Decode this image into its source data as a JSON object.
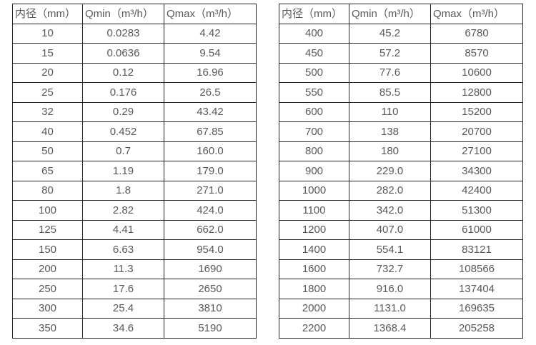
{
  "page": {
    "background_color": "#ffffff",
    "border_color": "#262626",
    "text_color": "#595959"
  },
  "tables": [
    {
      "name": "small-diameter-table",
      "headers": [
        "内径（mm）",
        "Qmin（m³/h）",
        "Qmax（m³/h）"
      ],
      "rows": [
        [
          "10",
          "0.0283",
          "4.42"
        ],
        [
          "15",
          "0.0636",
          "9.54"
        ],
        [
          "20",
          "0.12",
          "16.96"
        ],
        [
          "25",
          "0.176",
          "26.5"
        ],
        [
          "32",
          "0.29",
          "43.42"
        ],
        [
          "40",
          "0.452",
          "67.85"
        ],
        [
          "50",
          "0.7",
          "160.0"
        ],
        [
          "65",
          "1.19",
          "179.0"
        ],
        [
          "80",
          "1.8",
          "271.0"
        ],
        [
          "100",
          "2.82",
          "424.0"
        ],
        [
          "125",
          "4.41",
          "662.0"
        ],
        [
          "150",
          "6.63",
          "954.0"
        ],
        [
          "200",
          "11.3",
          "1690"
        ],
        [
          "250",
          "17.6",
          "2650"
        ],
        [
          "300",
          "25.4",
          "3810"
        ],
        [
          "350",
          "34.6",
          "5190"
        ]
      ]
    },
    {
      "name": "large-diameter-table",
      "headers": [
        "内径（mm）",
        "Qmin（m³/h）",
        "Qmax（m³/h）"
      ],
      "rows": [
        [
          "400",
          "45.2",
          "6780"
        ],
        [
          "450",
          "57.2",
          "8570"
        ],
        [
          "500",
          "77.6",
          "10600"
        ],
        [
          "550",
          "85.5",
          "12800"
        ],
        [
          "600",
          "110",
          "15200"
        ],
        [
          "700",
          "138",
          "20700"
        ],
        [
          "800",
          "180",
          "27100"
        ],
        [
          "900",
          "229.0",
          "34300"
        ],
        [
          "1000",
          "282.0",
          "42400"
        ],
        [
          "1100",
          "342.0",
          "51300"
        ],
        [
          "1200",
          "407.0",
          "61000"
        ],
        [
          "1400",
          "554.1",
          "83121"
        ],
        [
          "1600",
          "732.7",
          "108566"
        ],
        [
          "1800",
          "916.0",
          "137404"
        ],
        [
          "2000",
          "1131.0",
          "169635"
        ],
        [
          "2200",
          "1368.4",
          "205258"
        ]
      ]
    }
  ],
  "chart_data": {
    "type": "table",
    "title": "",
    "columns": [
      "内径（mm）",
      "Qmin（m³/h）",
      "Qmax（m³/h）"
    ],
    "rows": [
      [
        10,
        0.0283,
        4.42
      ],
      [
        15,
        0.0636,
        9.54
      ],
      [
        20,
        0.12,
        16.96
      ],
      [
        25,
        0.176,
        26.5
      ],
      [
        32,
        0.29,
        43.42
      ],
      [
        40,
        0.452,
        67.85
      ],
      [
        50,
        0.7,
        160.0
      ],
      [
        65,
        1.19,
        179.0
      ],
      [
        80,
        1.8,
        271.0
      ],
      [
        100,
        2.82,
        424.0
      ],
      [
        125,
        4.41,
        662.0
      ],
      [
        150,
        6.63,
        954.0
      ],
      [
        200,
        11.3,
        1690
      ],
      [
        250,
        17.6,
        2650
      ],
      [
        300,
        25.4,
        3810
      ],
      [
        350,
        34.6,
        5190
      ],
      [
        400,
        45.2,
        6780
      ],
      [
        450,
        57.2,
        8570
      ],
      [
        500,
        77.6,
        10600
      ],
      [
        550,
        85.5,
        12800
      ],
      [
        600,
        110,
        15200
      ],
      [
        700,
        138,
        20700
      ],
      [
        800,
        180,
        27100
      ],
      [
        900,
        229.0,
        34300
      ],
      [
        1000,
        282.0,
        42400
      ],
      [
        1100,
        342.0,
        51300
      ],
      [
        1200,
        407.0,
        61000
      ],
      [
        1400,
        554.1,
        83121
      ],
      [
        1600,
        732.7,
        108566
      ],
      [
        1800,
        916.0,
        137404
      ],
      [
        2000,
        1131.0,
        169635
      ],
      [
        2200,
        1368.4,
        205258
      ]
    ]
  }
}
